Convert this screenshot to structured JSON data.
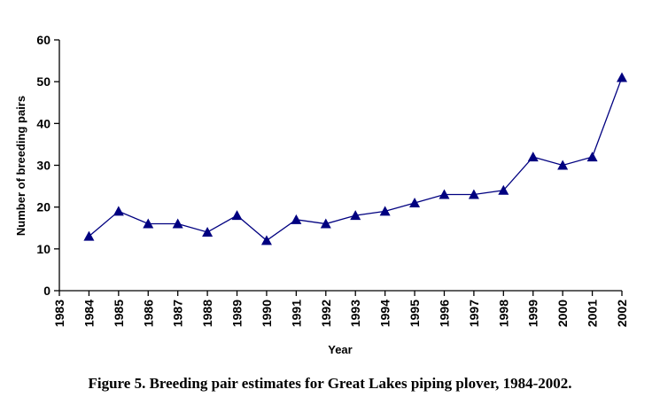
{
  "chart_data": {
    "type": "line",
    "title": "",
    "xlabel": "Year",
    "ylabel": "Number of breeding pairs",
    "x_ticks": [
      "1983",
      "1984",
      "1985",
      "1986",
      "1987",
      "1988",
      "1989",
      "1990",
      "1991",
      "1992",
      "1993",
      "1994",
      "1995",
      "1996",
      "1997",
      "1998",
      "1999",
      "2000",
      "2001",
      "2002"
    ],
    "y_ticks": [
      "0",
      "10",
      "20",
      "30",
      "40",
      "50",
      "60"
    ],
    "ylim": [
      0,
      60
    ],
    "xlim": [
      1983,
      2002
    ],
    "grid": false,
    "series": [
      {
        "name": "Breeding pairs",
        "color": "#000080",
        "marker": "triangle",
        "x": [
          1984,
          1985,
          1986,
          1987,
          1988,
          1989,
          1990,
          1991,
          1992,
          1993,
          1994,
          1995,
          1996,
          1997,
          1998,
          1999,
          2000,
          2001,
          2002
        ],
        "values": [
          13,
          19,
          16,
          16,
          14,
          18,
          12,
          17,
          16,
          18,
          19,
          21,
          23,
          23,
          24,
          32,
          30,
          32,
          51
        ]
      }
    ]
  },
  "caption": "Figure 5. Breeding pair estimates for Great Lakes piping plover, 1984-2002."
}
